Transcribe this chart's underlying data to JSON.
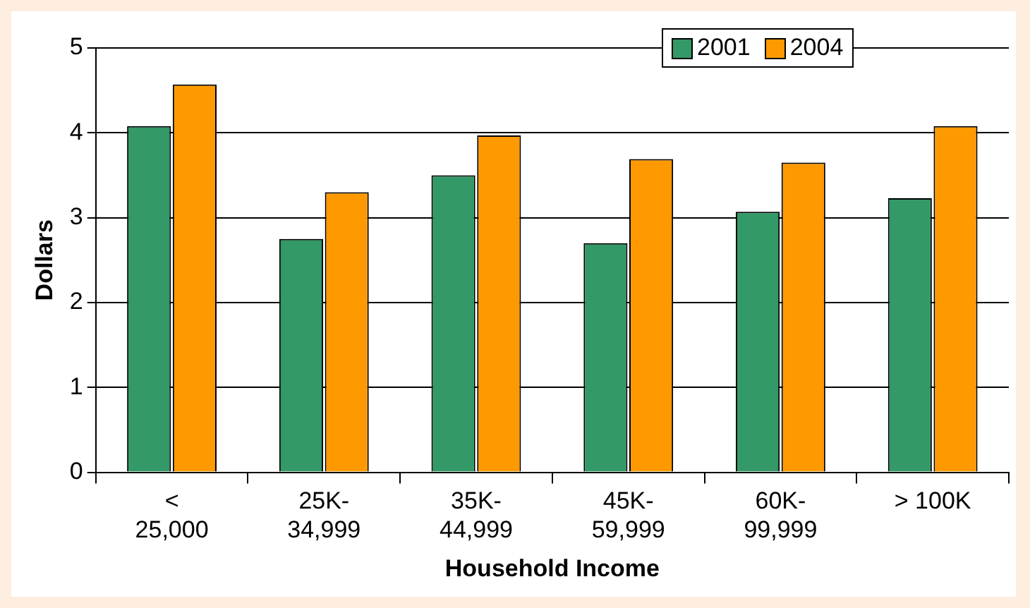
{
  "chart_data": {
    "type": "bar",
    "xlabel": "Household Income",
    "ylabel": "Dollars",
    "categories": [
      "<\n25,000",
      "25K-\n34,999",
      "35K-\n44,999",
      "45K-\n59,999",
      "60K-\n99,999",
      "> 100K"
    ],
    "series": [
      {
        "name": "2001",
        "color": "#339966",
        "values": [
          4.08,
          2.75,
          3.5,
          2.7,
          3.07,
          3.23
        ]
      },
      {
        "name": "2004",
        "color": "#ff9900",
        "values": [
          4.57,
          3.3,
          3.97,
          3.69,
          3.65,
          4.08
        ]
      }
    ],
    "ylim": [
      0,
      5
    ],
    "yticks": [
      0,
      1,
      2,
      3,
      4,
      5
    ],
    "grid": "y",
    "legend": "top right"
  }
}
